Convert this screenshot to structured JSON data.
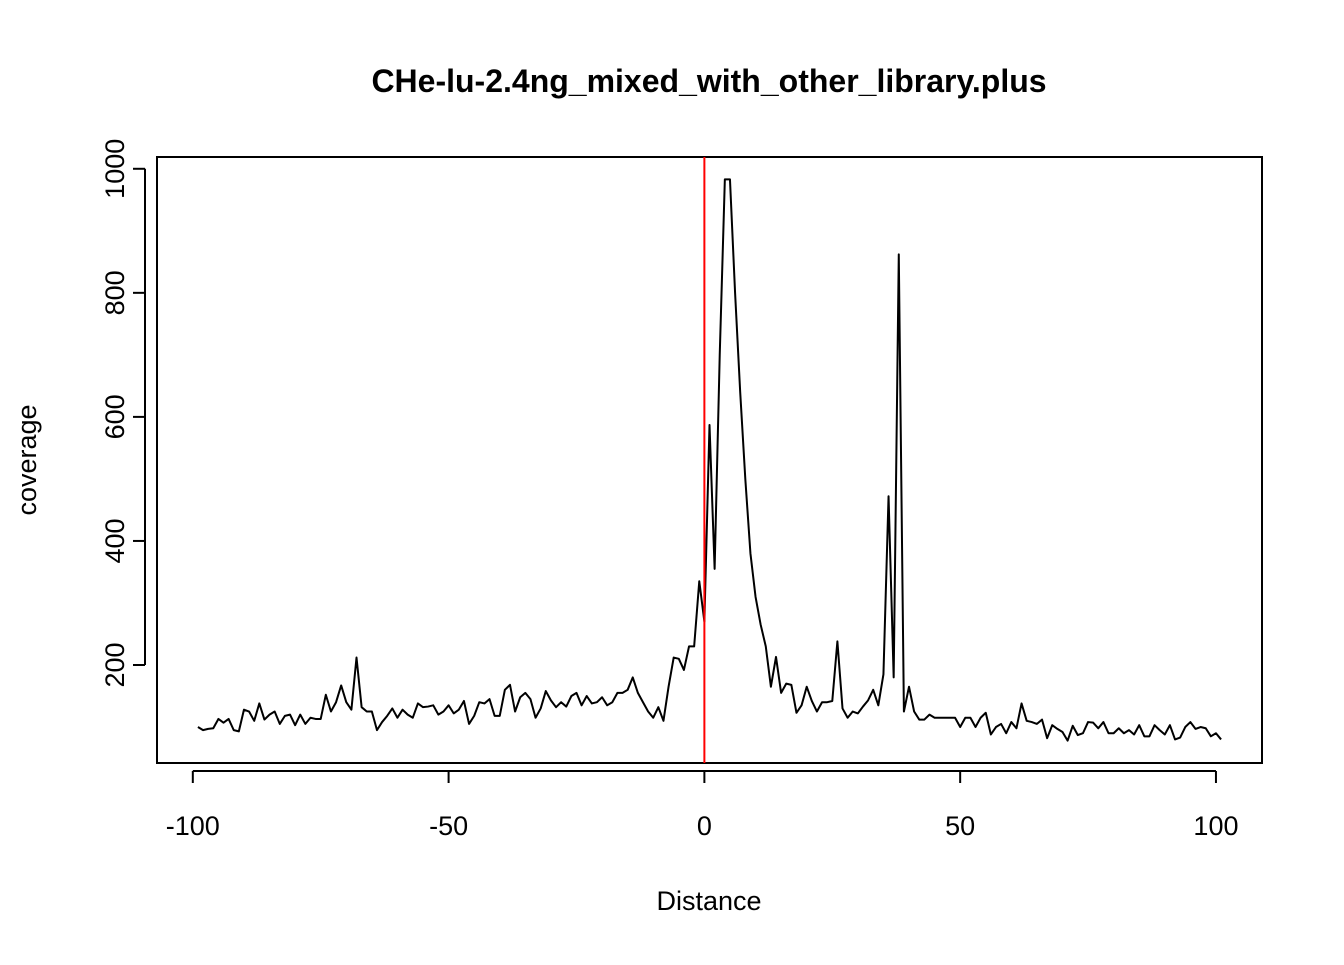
{
  "chart_data": {
    "type": "line",
    "title": "CHe-lu-2.4ng_mixed_with_other_library.plus",
    "x_label": "Distance",
    "y_label": "coverage",
    "x": [
      -99,
      -98,
      -97,
      -96,
      -95,
      -94,
      -93,
      -92,
      -91,
      -90,
      -89,
      -88,
      -87,
      -86,
      -85,
      -84,
      -83,
      -82,
      -81,
      -80,
      -79,
      -78,
      -77,
      -76,
      -75,
      -74,
      -73,
      -72,
      -71,
      -70,
      -69,
      -68,
      -67,
      -66,
      -65,
      -64,
      -63,
      -62,
      -61,
      -60,
      -59,
      -58,
      -57,
      -56,
      -55,
      -54,
      -53,
      -52,
      -51,
      -50,
      -49,
      -48,
      -47,
      -46,
      -45,
      -44,
      -43,
      -42,
      -41,
      -40,
      -39,
      -38,
      -37,
      -36,
      -35,
      -34,
      -33,
      -32,
      -31,
      -30,
      -29,
      -28,
      -27,
      -26,
      -25,
      -24,
      -23,
      -22,
      -21,
      -20,
      -19,
      -18,
      -17,
      -16,
      -15,
      -14,
      -13,
      -12,
      -11,
      -10,
      -9,
      -8,
      -7,
      -6,
      -5,
      -4,
      -3,
      -2,
      -1,
      0,
      1,
      2,
      3,
      4,
      5,
      6,
      7,
      8,
      9,
      10,
      11,
      12,
      13,
      14,
      15,
      16,
      17,
      18,
      19,
      20,
      21,
      22,
      23,
      24,
      25,
      26,
      27,
      28,
      29,
      30,
      31,
      32,
      33,
      34,
      35,
      36,
      37,
      38,
      39,
      40,
      41,
      42,
      43,
      44,
      45,
      46,
      47,
      48,
      49,
      50,
      51,
      52,
      53,
      54,
      55,
      56,
      57,
      58,
      59,
      60,
      61,
      62,
      63,
      64,
      65,
      66,
      67,
      68,
      69,
      70,
      71,
      72,
      73,
      74,
      75,
      76,
      77,
      78,
      79,
      80,
      81,
      82,
      83,
      84,
      85,
      86,
      87,
      88,
      89,
      90,
      91,
      92,
      93,
      94,
      95,
      96,
      97,
      98,
      99,
      100,
      101
    ],
    "series": [
      {
        "color": "#000000",
        "values": [
          100,
          95,
          97,
          98,
          113,
          107,
          113,
          95,
          93,
          128,
          125,
          110,
          138,
          112,
          120,
          125,
          105,
          118,
          120,
          103,
          120,
          105,
          115,
          113,
          113,
          152,
          125,
          140,
          167,
          140,
          128,
          212,
          132,
          125,
          125,
          95,
          108,
          118,
          130,
          115,
          128,
          120,
          115,
          138,
          132,
          133,
          135,
          120,
          125,
          135,
          122,
          128,
          142,
          105,
          118,
          140,
          138,
          145,
          118,
          118,
          160,
          168,
          125,
          148,
          155,
          145,
          115,
          130,
          158,
          143,
          132,
          140,
          133,
          150,
          155,
          135,
          150,
          138,
          140,
          148,
          135,
          140,
          155,
          155,
          160,
          180,
          155,
          140,
          125,
          115,
          132,
          110,
          165,
          212,
          210,
          192,
          230,
          230,
          335,
          270,
          587,
          355,
          700,
          983,
          983,
          800,
          640,
          500,
          380,
          310,
          265,
          230,
          165,
          213,
          155,
          170,
          168,
          123,
          135,
          165,
          142,
          125,
          140,
          140,
          142,
          238,
          130,
          115,
          125,
          122,
          133,
          143,
          160,
          135,
          185,
          472,
          180,
          862,
          125,
          165,
          125,
          112,
          112,
          120,
          115,
          115,
          115,
          115,
          115,
          100,
          115,
          115,
          100,
          115,
          123,
          88,
          100,
          105,
          90,
          108,
          98,
          138,
          110,
          108,
          105,
          112,
          82,
          103,
          97,
          92,
          78,
          102,
          87,
          90,
          108,
          107,
          98,
          108,
          90,
          90,
          98,
          90,
          95,
          88,
          103,
          85,
          85,
          103,
          95,
          88,
          103,
          80,
          83,
          100,
          108,
          97,
          100,
          98,
          85,
          90,
          80
        ]
      }
    ],
    "vlines": [
      0
    ],
    "vline_color": "#ff0000",
    "xlim": [
      -107,
      109
    ],
    "xticks": [
      -100,
      -50,
      0,
      50,
      100
    ],
    "ylim": [
      42,
      1019
    ],
    "yticks": [
      200,
      400,
      600,
      800,
      1000
    ]
  }
}
